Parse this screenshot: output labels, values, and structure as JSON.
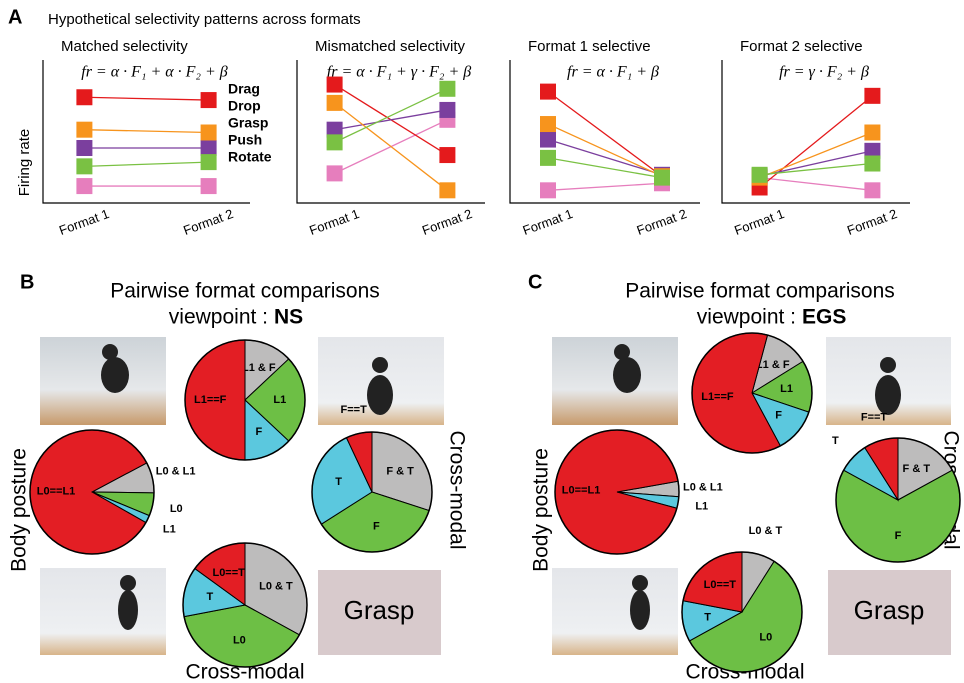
{
  "panels": [
    {
      "label": "A",
      "title": "Hypothetical selectivity patterns across formats"
    },
    {
      "label": "B",
      "title": "Pairwise format comparisons",
      "viewpoint_label": "viewpoint :",
      "viewpoint": "NS",
      "photo_label": "Grasp",
      "left_label": "Body posture",
      "right_label": "Cross-modal",
      "bottom_label": "Cross-modal"
    },
    {
      "label": "C",
      "title": "Pairwise format comparisons",
      "viewpoint_label": "viewpoint :",
      "viewpoint": "EGS",
      "photo_label": "Grasp",
      "left_label": "Body posture",
      "right_label": "Cross-modal",
      "bottom_label": "Cross-modal"
    }
  ],
  "chart_data": [
    {
      "type": "line",
      "title": "Matched selectivity",
      "title_color": "#e41a1c",
      "subtitle": "fr = α · F₁ + α · F₂ + β",
      "ylabel": "Firing rate",
      "categories": [
        "Format 1",
        "Format 2"
      ],
      "ylim": [
        0,
        10
      ],
      "legend": true,
      "series": [
        {
          "name": "Drag",
          "color": "#e67ebd",
          "values": [
            1.2,
            1.2
          ]
        },
        {
          "name": "Drop",
          "color": "#e41a1c",
          "values": [
            7.5,
            7.3
          ]
        },
        {
          "name": "Grasp",
          "color": "#7b3f9e",
          "values": [
            3.9,
            3.9
          ]
        },
        {
          "name": "Push",
          "color": "#f7941d",
          "values": [
            5.2,
            5.0
          ]
        },
        {
          "name": "Rotate",
          "color": "#7ac143",
          "values": [
            2.6,
            2.9
          ]
        }
      ]
    },
    {
      "type": "line",
      "title": "Mismatched selectivity",
      "title_color": "#999999",
      "subtitle": "fr = α · F₁ + γ · F₂ + β",
      "categories": [
        "Format 1",
        "Format 2"
      ],
      "ylim": [
        0,
        10
      ],
      "series": [
        {
          "color": "#e67ebd",
          "values": [
            2.1,
            5.9
          ]
        },
        {
          "color": "#e41a1c",
          "values": [
            8.4,
            3.4
          ]
        },
        {
          "color": "#7b3f9e",
          "values": [
            5.2,
            6.6
          ]
        },
        {
          "color": "#f7941d",
          "values": [
            7.1,
            0.9
          ]
        },
        {
          "color": "#7ac143",
          "values": [
            4.3,
            8.1
          ]
        }
      ]
    },
    {
      "type": "line",
      "title": "Format 1 selective",
      "title_color": "#6dbf45",
      "subtitle": "fr = α · F₁ + β",
      "categories": [
        "Format 1",
        "Format 2"
      ],
      "ylim": [
        0,
        10
      ],
      "series": [
        {
          "color": "#e67ebd",
          "values": [
            0.9,
            1.4
          ]
        },
        {
          "color": "#e41a1c",
          "values": [
            7.9,
            1.9
          ]
        },
        {
          "color": "#7b3f9e",
          "values": [
            4.5,
            2.0
          ]
        },
        {
          "color": "#f7941d",
          "values": [
            5.6,
            1.9
          ]
        },
        {
          "color": "#7ac143",
          "values": [
            3.2,
            1.8
          ]
        }
      ]
    },
    {
      "type": "line",
      "title": "Format 2 selective",
      "title_color": "#5bc8de",
      "subtitle": "fr = γ · F₂ + β",
      "categories": [
        "Format 1",
        "Format 2"
      ],
      "ylim": [
        0,
        10
      ],
      "series": [
        {
          "color": "#e67ebd",
          "values": [
            1.8,
            0.9
          ]
        },
        {
          "color": "#e41a1c",
          "values": [
            1.1,
            7.6
          ]
        },
        {
          "color": "#7b3f9e",
          "values": [
            1.9,
            3.7
          ]
        },
        {
          "color": "#f7941d",
          "values": [
            1.8,
            5.0
          ]
        },
        {
          "color": "#7ac143",
          "values": [
            2.0,
            2.8
          ]
        }
      ]
    },
    {
      "type": "pie",
      "startangle": 0,
      "categories": [
        "L1 & F",
        "L1",
        "F",
        "L1==F"
      ],
      "values": [
        13,
        24,
        13,
        50
      ],
      "colors": [
        "#bdbcbc",
        "#6dbf45",
        "#5bc8de",
        "#e31e24"
      ]
    },
    {
      "type": "pie",
      "startangle": 62,
      "categories": [
        "L0 & L1",
        "L0",
        "L1",
        "L0==L1"
      ],
      "values": [
        8,
        6,
        2,
        84
      ],
      "colors": [
        "#bdbcbc",
        "#6dbf45",
        "#5bc8de",
        "#e31e24"
      ]
    },
    {
      "type": "pie",
      "startangle": 0,
      "categories": [
        "F & T",
        "F",
        "T",
        "F==T"
      ],
      "values": [
        30,
        36,
        27,
        7
      ],
      "colors": [
        "#bdbcbc",
        "#6dbf45",
        "#5bc8de",
        "#e31e24"
      ]
    },
    {
      "type": "pie",
      "startangle": 0,
      "categories": [
        "L0 & T",
        "L0",
        "T",
        "L0==T"
      ],
      "values": [
        33,
        39,
        13,
        15
      ],
      "colors": [
        "#bdbcbc",
        "#6dbf45",
        "#5bc8de",
        "#e31e24"
      ]
    },
    {
      "type": "pie",
      "startangle": 15,
      "categories": [
        "L1 & F",
        "L1",
        "F",
        "L1==F"
      ],
      "values": [
        12,
        14,
        12,
        62
      ],
      "colors": [
        "#bdbcbc",
        "#6dbf45",
        "#5bc8de",
        "#e31e24"
      ]
    },
    {
      "type": "pie",
      "startangle": 80,
      "categories": [
        "L0 & L1",
        "L1",
        "L0==L1"
      ],
      "values": [
        4,
        3,
        93
      ],
      "colors": [
        "#bdbcbc",
        "#5bc8de",
        "#e31e24"
      ]
    },
    {
      "type": "pie",
      "startangle": 0,
      "categories": [
        "F & T",
        "F",
        "T",
        "F==T"
      ],
      "values": [
        17,
        66,
        8,
        9
      ],
      "colors": [
        "#bdbcbc",
        "#6dbf45",
        "#5bc8de",
        "#e31e24"
      ]
    },
    {
      "type": "pie",
      "startangle": 0,
      "categories": [
        "L0 & T",
        "L0",
        "T",
        "L0==T"
      ],
      "values": [
        9,
        58,
        11,
        22
      ],
      "colors": [
        "#bdbcbc",
        "#6dbf45",
        "#5bc8de",
        "#e31e24"
      ]
    }
  ]
}
